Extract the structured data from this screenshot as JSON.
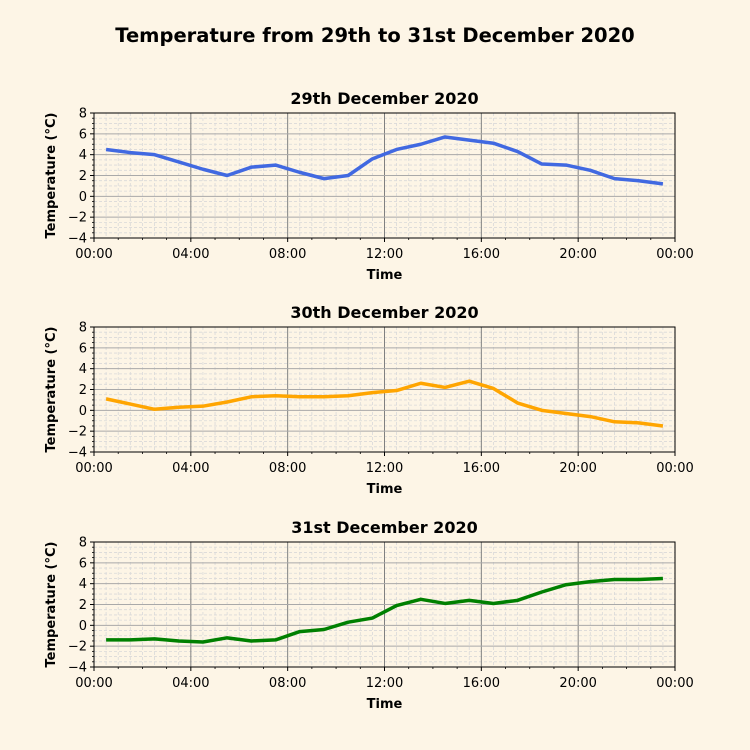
{
  "figure": {
    "title": "Temperature from 29th to 31st December 2020",
    "background": "#fdf5e6"
  },
  "chart_data": [
    {
      "type": "line",
      "title": "29th December 2020",
      "xlabel": "Time",
      "ylabel": "Temperature (°C)",
      "ylim": [
        -4,
        8
      ],
      "yticks": [
        "−4",
        "−2",
        "0",
        "2",
        "4",
        "6",
        "8"
      ],
      "xlim": [
        "00:00",
        "24:00"
      ],
      "xticks": [
        "00:00",
        "04:00",
        "08:00",
        "12:00",
        "16:00",
        "20:00",
        "00:00"
      ],
      "grid": true,
      "color": "#4169e1",
      "series": [
        {
          "x": [
            0.5,
            1.5,
            2.5,
            3.5,
            4.5,
            5.5,
            6.5,
            7.5,
            8.5,
            9.5,
            10.5,
            11.5,
            12.5,
            13.5,
            14.5,
            15.5,
            16.5,
            17.5,
            18.5,
            19.5,
            20.5,
            21.5,
            22.5,
            23.5
          ],
          "values": [
            4.5,
            4.2,
            4.0,
            3.3,
            2.6,
            2.0,
            2.8,
            3.0,
            2.3,
            1.7,
            2.0,
            3.6,
            4.5,
            5.0,
            5.7,
            5.4,
            5.1,
            4.3,
            3.1,
            3.0,
            2.5,
            1.7,
            1.5,
            1.2
          ]
        }
      ]
    },
    {
      "type": "line",
      "title": "30th December 2020",
      "xlabel": "Time",
      "ylabel": "Temperature (°C)",
      "ylim": [
        -4,
        8
      ],
      "yticks": [
        "−4",
        "−2",
        "0",
        "2",
        "4",
        "6",
        "8"
      ],
      "xlim": [
        "00:00",
        "24:00"
      ],
      "xticks": [
        "00:00",
        "04:00",
        "08:00",
        "12:00",
        "16:00",
        "20:00",
        "00:00"
      ],
      "grid": true,
      "color": "#ffa500",
      "series": [
        {
          "x": [
            0.5,
            1.5,
            2.5,
            3.5,
            4.5,
            5.5,
            6.5,
            7.5,
            8.5,
            9.5,
            10.5,
            11.5,
            12.5,
            13.5,
            14.5,
            15.5,
            16.5,
            17.5,
            18.5,
            19.5,
            20.5,
            21.5,
            22.5,
            23.5
          ],
          "values": [
            1.1,
            0.6,
            0.1,
            0.3,
            0.4,
            0.8,
            1.3,
            1.4,
            1.3,
            1.3,
            1.4,
            1.7,
            1.9,
            2.6,
            2.2,
            2.8,
            2.1,
            0.7,
            0.0,
            -0.3,
            -0.6,
            -1.1,
            -1.2,
            -1.5
          ]
        }
      ]
    },
    {
      "type": "line",
      "title": "31st December 2020",
      "xlabel": "Time",
      "ylabel": "Temperature (°C)",
      "ylim": [
        -4,
        8
      ],
      "yticks": [
        "−4",
        "−2",
        "0",
        "2",
        "4",
        "6",
        "8"
      ],
      "xlim": [
        "00:00",
        "24:00"
      ],
      "xticks": [
        "00:00",
        "04:00",
        "08:00",
        "12:00",
        "16:00",
        "20:00",
        "00:00"
      ],
      "grid": true,
      "color": "#008000",
      "series": [
        {
          "x": [
            0.5,
            1.5,
            2.5,
            3.5,
            4.5,
            5.5,
            6.5,
            7.5,
            8.5,
            9.5,
            10.5,
            11.5,
            12.5,
            13.5,
            14.5,
            15.5,
            16.5,
            17.5,
            18.5,
            19.5,
            20.5,
            21.5,
            22.5,
            23.5
          ],
          "values": [
            -1.4,
            -1.4,
            -1.3,
            -1.5,
            -1.6,
            -1.2,
            -1.5,
            -1.4,
            -0.6,
            -0.4,
            0.3,
            0.7,
            1.9,
            2.5,
            2.1,
            2.4,
            2.1,
            2.4,
            3.2,
            3.9,
            4.2,
            4.4,
            4.4,
            4.5
          ]
        }
      ]
    }
  ]
}
